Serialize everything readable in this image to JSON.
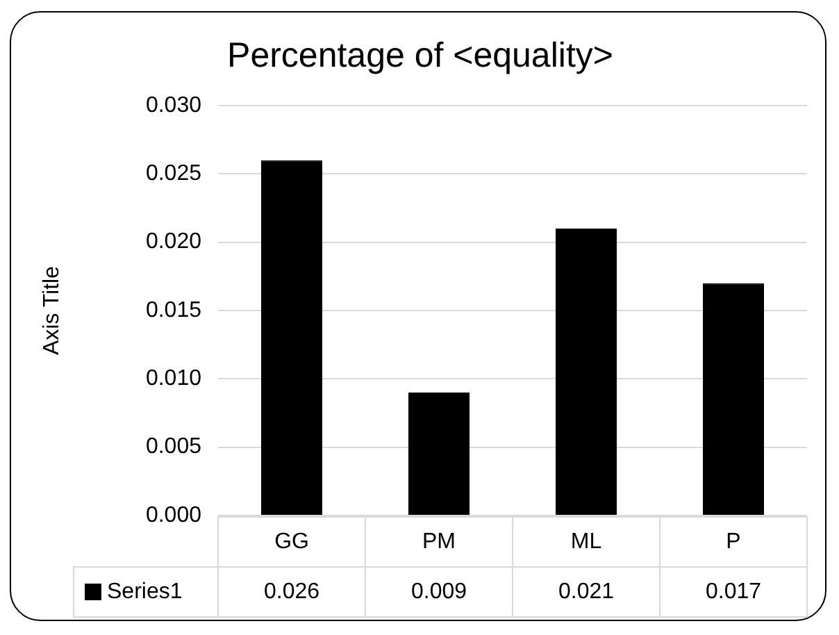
{
  "chart_data": {
    "type": "bar",
    "title": "Percentage of <equality>",
    "ylabel": "Axis Title",
    "categories": [
      "GG",
      "PM",
      "ML",
      "P"
    ],
    "series": [
      {
        "name": "Series1",
        "color": "#000000",
        "values": [
          0.026,
          0.009,
          0.021,
          0.017
        ]
      }
    ],
    "ylim": [
      0,
      0.03
    ],
    "yticks": [
      {
        "value": 0,
        "label": "0.000"
      },
      {
        "value": 0.005,
        "label": "0.005"
      },
      {
        "value": 0.01,
        "label": "0.010"
      },
      {
        "value": 0.015,
        "label": "0.015"
      },
      {
        "value": 0.02,
        "label": "0.020"
      },
      {
        "value": 0.025,
        "label": "0.025"
      },
      {
        "value": 0.03,
        "label": "0.030"
      }
    ],
    "grid": "y",
    "data_labels": true
  }
}
